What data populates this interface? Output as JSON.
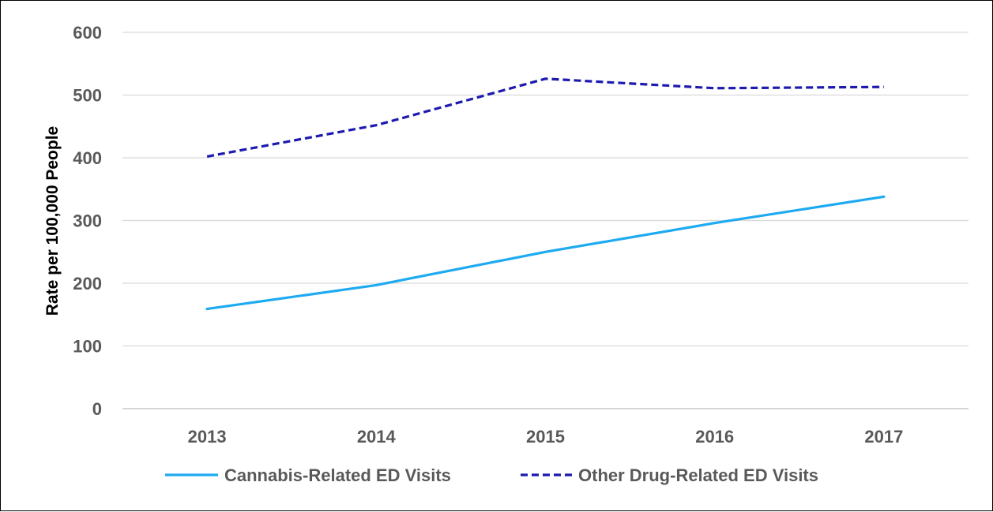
{
  "chart_data": {
    "type": "line",
    "title": "",
    "xlabel": "",
    "ylabel": "Rate per 100,000 People",
    "categories": [
      "2013",
      "2014",
      "2015",
      "2016",
      "2017"
    ],
    "ylim": [
      0,
      600
    ],
    "yticks": [
      0,
      100,
      200,
      300,
      400,
      500,
      600
    ],
    "grid": true,
    "legend_position": "bottom",
    "series": [
      {
        "name": "Cannabis-Related ED Visits",
        "values": [
          159,
          197,
          250,
          296,
          338
        ],
        "color": "#1EAAF1",
        "style": "solid"
      },
      {
        "name": "Other Drug-Related ED Visits",
        "values": [
          402,
          452,
          526,
          511,
          513
        ],
        "color": "#1C1AAF",
        "style": "dashed"
      }
    ]
  }
}
